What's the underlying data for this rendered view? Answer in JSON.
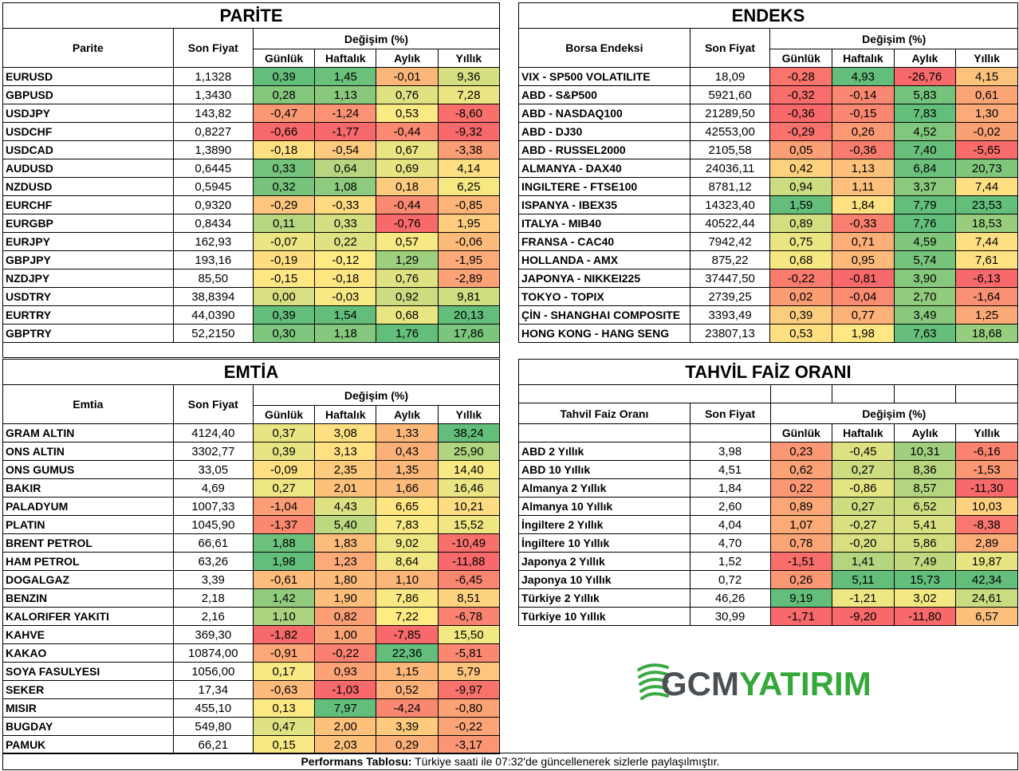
{
  "footer": {
    "bold": "Performans Tablosu:",
    "text": " Türkiye saati ile 07:32'de güncellenerek sizlerle paylaşılmıştır."
  },
  "logo": {
    "text_gcm": "GCM",
    "text_yatirim": "YATIRIM",
    "colors": {
      "gcm": "#4a4f54",
      "yatirim": "#35a83a",
      "swoosh": "#3aa844"
    }
  },
  "scale_colors": {
    "red": "#f8696b",
    "yellow": "#ffeb84",
    "green": "#63be7b"
  },
  "parite": {
    "title": "PARİTE",
    "col_name": "Parite",
    "col_price": "Son Fiyat",
    "col_change": "Değişim (%)",
    "periods": [
      "Günlük",
      "Haftalık",
      "Aylık",
      "Yıllık"
    ],
    "rows": [
      {
        "name": "EURUSD",
        "price": "1,1328",
        "vals": [
          "0,39",
          "1,45",
          "-0,01",
          "9,36"
        ]
      },
      {
        "name": "GBPUSD",
        "price": "1,3430",
        "vals": [
          "0,28",
          "1,13",
          "0,76",
          "7,28"
        ]
      },
      {
        "name": "USDJPY",
        "price": "143,82",
        "vals": [
          "-0,47",
          "-1,24",
          "0,53",
          "-8,60"
        ]
      },
      {
        "name": "USDCHF",
        "price": "0,8227",
        "vals": [
          "-0,66",
          "-1,77",
          "-0,44",
          "-9,32"
        ]
      },
      {
        "name": "USDCAD",
        "price": "1,3890",
        "vals": [
          "-0,18",
          "-0,54",
          "0,67",
          "-3,38"
        ]
      },
      {
        "name": "AUDUSD",
        "price": "0,6445",
        "vals": [
          "0,33",
          "0,64",
          "0,69",
          "4,14"
        ]
      },
      {
        "name": "NZDUSD",
        "price": "0,5945",
        "vals": [
          "0,32",
          "1,08",
          "0,18",
          "6,25"
        ]
      },
      {
        "name": "EURCHF",
        "price": "0,9320",
        "vals": [
          "-0,29",
          "-0,33",
          "-0,44",
          "-0,85"
        ]
      },
      {
        "name": "EURGBP",
        "price": "0,8434",
        "vals": [
          "0,11",
          "0,33",
          "-0,76",
          "1,95"
        ]
      },
      {
        "name": "EURJPY",
        "price": "162,93",
        "vals": [
          "-0,07",
          "0,22",
          "0,57",
          "-0,06"
        ]
      },
      {
        "name": "GBPJPY",
        "price": "193,16",
        "vals": [
          "-0,19",
          "-0,12",
          "1,29",
          "-1,95"
        ]
      },
      {
        "name": "NZDJPY",
        "price": "85,50",
        "vals": [
          "-0,15",
          "-0,18",
          "0,76",
          "-2,89"
        ]
      },
      {
        "name": "USDTRY",
        "price": "38,8394",
        "vals": [
          "0,00",
          "-0,03",
          "0,92",
          "9,81"
        ]
      },
      {
        "name": "EURTRY",
        "price": "44,0390",
        "vals": [
          "0,39",
          "1,54",
          "0,68",
          "20,13"
        ]
      },
      {
        "name": "GBPTRY",
        "price": "52,2150",
        "vals": [
          "0,30",
          "1,18",
          "1,76",
          "17,86"
        ]
      }
    ]
  },
  "endeks": {
    "title": "ENDEKS",
    "col_name": "Borsa Endeksi",
    "col_price": "Son Fiyat",
    "col_change": "Değişim (%)",
    "periods": [
      "Günlük",
      "Haftalık",
      "Aylık",
      "Yıllık"
    ],
    "rows": [
      {
        "name": "VIX  - SP500 VOLATILITE",
        "price": "18,09",
        "vals": [
          "-0,28",
          "4,93",
          "-26,76",
          "4,15"
        ]
      },
      {
        "name": "ABD - S&P500",
        "price": "5921,60",
        "vals": [
          "-0,32",
          "-0,14",
          "5,83",
          "0,61"
        ]
      },
      {
        "name": "ABD - NASDAQ100",
        "price": "21289,50",
        "vals": [
          "-0,36",
          "-0,15",
          "7,83",
          "1,30"
        ]
      },
      {
        "name": "ABD - DJ30",
        "price": "42553,00",
        "vals": [
          "-0,29",
          "0,26",
          "4,52",
          "-0,02"
        ]
      },
      {
        "name": "ABD - RUSSEL2000",
        "price": "2105,58",
        "vals": [
          "0,05",
          "-0,36",
          "7,40",
          "-5,65"
        ]
      },
      {
        "name": "ALMANYA - DAX40",
        "price": "24036,11",
        "vals": [
          "0,42",
          "1,13",
          "6,84",
          "20,73"
        ]
      },
      {
        "name": "INGILTERE - FTSE100",
        "price": "8781,12",
        "vals": [
          "0,94",
          "1,11",
          "3,37",
          "7,44"
        ]
      },
      {
        "name": "ISPANYA - IBEX35",
        "price": "14323,40",
        "vals": [
          "1,59",
          "1,84",
          "7,79",
          "23,53"
        ]
      },
      {
        "name": "ITALYA - MIB40",
        "price": "40522,44",
        "vals": [
          "0,89",
          "-0,33",
          "7,76",
          "18,53"
        ]
      },
      {
        "name": "FRANSA - CAC40",
        "price": "7942,42",
        "vals": [
          "0,75",
          "0,71",
          "4,59",
          "7,44"
        ]
      },
      {
        "name": "HOLLANDA - AMX",
        "price": "875,22",
        "vals": [
          "0,68",
          "0,95",
          "5,74",
          "7,61"
        ]
      },
      {
        "name": "JAPONYA - NIKKEI225",
        "price": "37447,50",
        "vals": [
          "-0,22",
          "-0,81",
          "3,90",
          "-6,13"
        ]
      },
      {
        "name": "TOKYO - TOPIX",
        "price": "2739,25",
        "vals": [
          "0,02",
          "-0,04",
          "2,70",
          "-1,64"
        ]
      },
      {
        "name": "ÇİN - SHANGHAI COMPOSITE",
        "price": "3393,49",
        "vals": [
          "0,39",
          "0,77",
          "3,49",
          "1,25"
        ]
      },
      {
        "name": "HONG KONG - HANG SENG",
        "price": "23807,13",
        "vals": [
          "0,53",
          "1,98",
          "7,63",
          "18,68"
        ]
      }
    ]
  },
  "emtia": {
    "title": "EMTİA",
    "col_name": "Emtia",
    "col_price": "Son Fiyat",
    "col_change": "Değişim (%)",
    "periods": [
      "Günlük",
      "Haftalık",
      "Aylık",
      "Yıllık"
    ],
    "rows": [
      {
        "name": "GRAM ALTIN",
        "price": "4124,40",
        "vals": [
          "0,37",
          "3,08",
          "1,33",
          "38,24"
        ]
      },
      {
        "name": "ONS ALTIN",
        "price": "3302,77",
        "vals": [
          "0,39",
          "3,13",
          "0,43",
          "25,90"
        ]
      },
      {
        "name": "ONS GUMUS",
        "price": "33,05",
        "vals": [
          "-0,09",
          "2,35",
          "1,35",
          "14,40"
        ]
      },
      {
        "name": "BAKIR",
        "price": "4,69",
        "vals": [
          "0,27",
          "2,01",
          "1,66",
          "16,46"
        ]
      },
      {
        "name": "PALADYUM",
        "price": "1007,33",
        "vals": [
          "-1,04",
          "4,43",
          "6,65",
          "10,21"
        ]
      },
      {
        "name": "PLATIN",
        "price": "1045,90",
        "vals": [
          "-1,37",
          "5,40",
          "7,83",
          "15,52"
        ]
      },
      {
        "name": "BRENT PETROL",
        "price": "66,61",
        "vals": [
          "1,88",
          "1,83",
          "9,02",
          "-10,49"
        ]
      },
      {
        "name": "HAM PETROL",
        "price": "63,26",
        "vals": [
          "1,98",
          "1,23",
          "8,64",
          "-11,88"
        ]
      },
      {
        "name": "DOGALGAZ",
        "price": "3,39",
        "vals": [
          "-0,61",
          "1,80",
          "1,10",
          "-6,45"
        ]
      },
      {
        "name": "BENZIN",
        "price": "2,18",
        "vals": [
          "1,42",
          "1,90",
          "7,86",
          "8,51"
        ]
      },
      {
        "name": "KALORIFER YAKITI",
        "price": "2,16",
        "vals": [
          "1,10",
          "0,82",
          "7,22",
          "-6,78"
        ]
      },
      {
        "name": "KAHVE",
        "price": "369,30",
        "vals": [
          "-1,82",
          "1,00",
          "-7,85",
          "15,50"
        ]
      },
      {
        "name": "KAKAO",
        "price": "10874,00",
        "vals": [
          "-0,91",
          "-0,22",
          "22,36",
          "-5,81"
        ]
      },
      {
        "name": "SOYA FASULYESI",
        "price": "1056,00",
        "vals": [
          "0,17",
          "0,93",
          "1,15",
          "5,79"
        ]
      },
      {
        "name": "SEKER",
        "price": "17,34",
        "vals": [
          "-0,63",
          "-1,03",
          "0,52",
          "-9,97"
        ]
      },
      {
        "name": "MISIR",
        "price": "455,10",
        "vals": [
          "0,13",
          "7,97",
          "-4,24",
          "-0,80"
        ]
      },
      {
        "name": "BUGDAY",
        "price": "549,80",
        "vals": [
          "0,47",
          "2,00",
          "3,39",
          "-0,22"
        ]
      },
      {
        "name": "PAMUK",
        "price": "66,21",
        "vals": [
          "0,15",
          "2,03",
          "0,29",
          "-3,17"
        ]
      }
    ]
  },
  "tahvil": {
    "title": "TAHVİL FAİZ ORANI",
    "col_name": "Tahvil Faiz Oranı",
    "col_price": "Son Fiyat",
    "col_change": "Değişim (%)",
    "periods": [
      "Günlük",
      "Haftalık",
      "Aylık",
      "Yıllık"
    ],
    "rows": [
      {
        "name": "ABD 2 Yıllık",
        "price": "3,98",
        "vals": [
          "0,23",
          "-0,45",
          "10,31",
          "-6,16"
        ]
      },
      {
        "name": "ABD 10 Yıllık",
        "price": "4,51",
        "vals": [
          "0,62",
          "0,27",
          "8,36",
          "-1,53"
        ]
      },
      {
        "name": "Almanya 2 Yıllık",
        "price": "1,84",
        "vals": [
          "0,22",
          "-0,86",
          "8,57",
          "-11,30"
        ]
      },
      {
        "name": "Almanya 10 Yıllık",
        "price": "2,60",
        "vals": [
          "0,89",
          "0,27",
          "6,52",
          "10,03"
        ]
      },
      {
        "name": "İngiltere 2 Yıllık",
        "price": "4,04",
        "vals": [
          "1,07",
          "-0,27",
          "5,41",
          "-8,38"
        ]
      },
      {
        "name": "İngiltere 10 Yıllık",
        "price": "4,70",
        "vals": [
          "0,78",
          "-0,20",
          "5,86",
          "2,89"
        ]
      },
      {
        "name": "Japonya 2 Yıllık",
        "price": "1,52",
        "vals": [
          "-1,51",
          "1,41",
          "7,49",
          "19,87"
        ]
      },
      {
        "name": "Japonya 10 Yıllık",
        "price": "0,72",
        "vals": [
          "0,26",
          "5,11",
          "15,73",
          "42,34"
        ]
      },
      {
        "name": "Türkiye 2 Yıllık",
        "price": "46,26",
        "vals": [
          "9,19",
          "-1,21",
          "3,02",
          "24,61"
        ]
      },
      {
        "name": "Türkiye 10 Yıllık",
        "price": "30,99",
        "vals": [
          "-1,71",
          "-9,20",
          "-11,80",
          "6,57"
        ]
      }
    ]
  }
}
